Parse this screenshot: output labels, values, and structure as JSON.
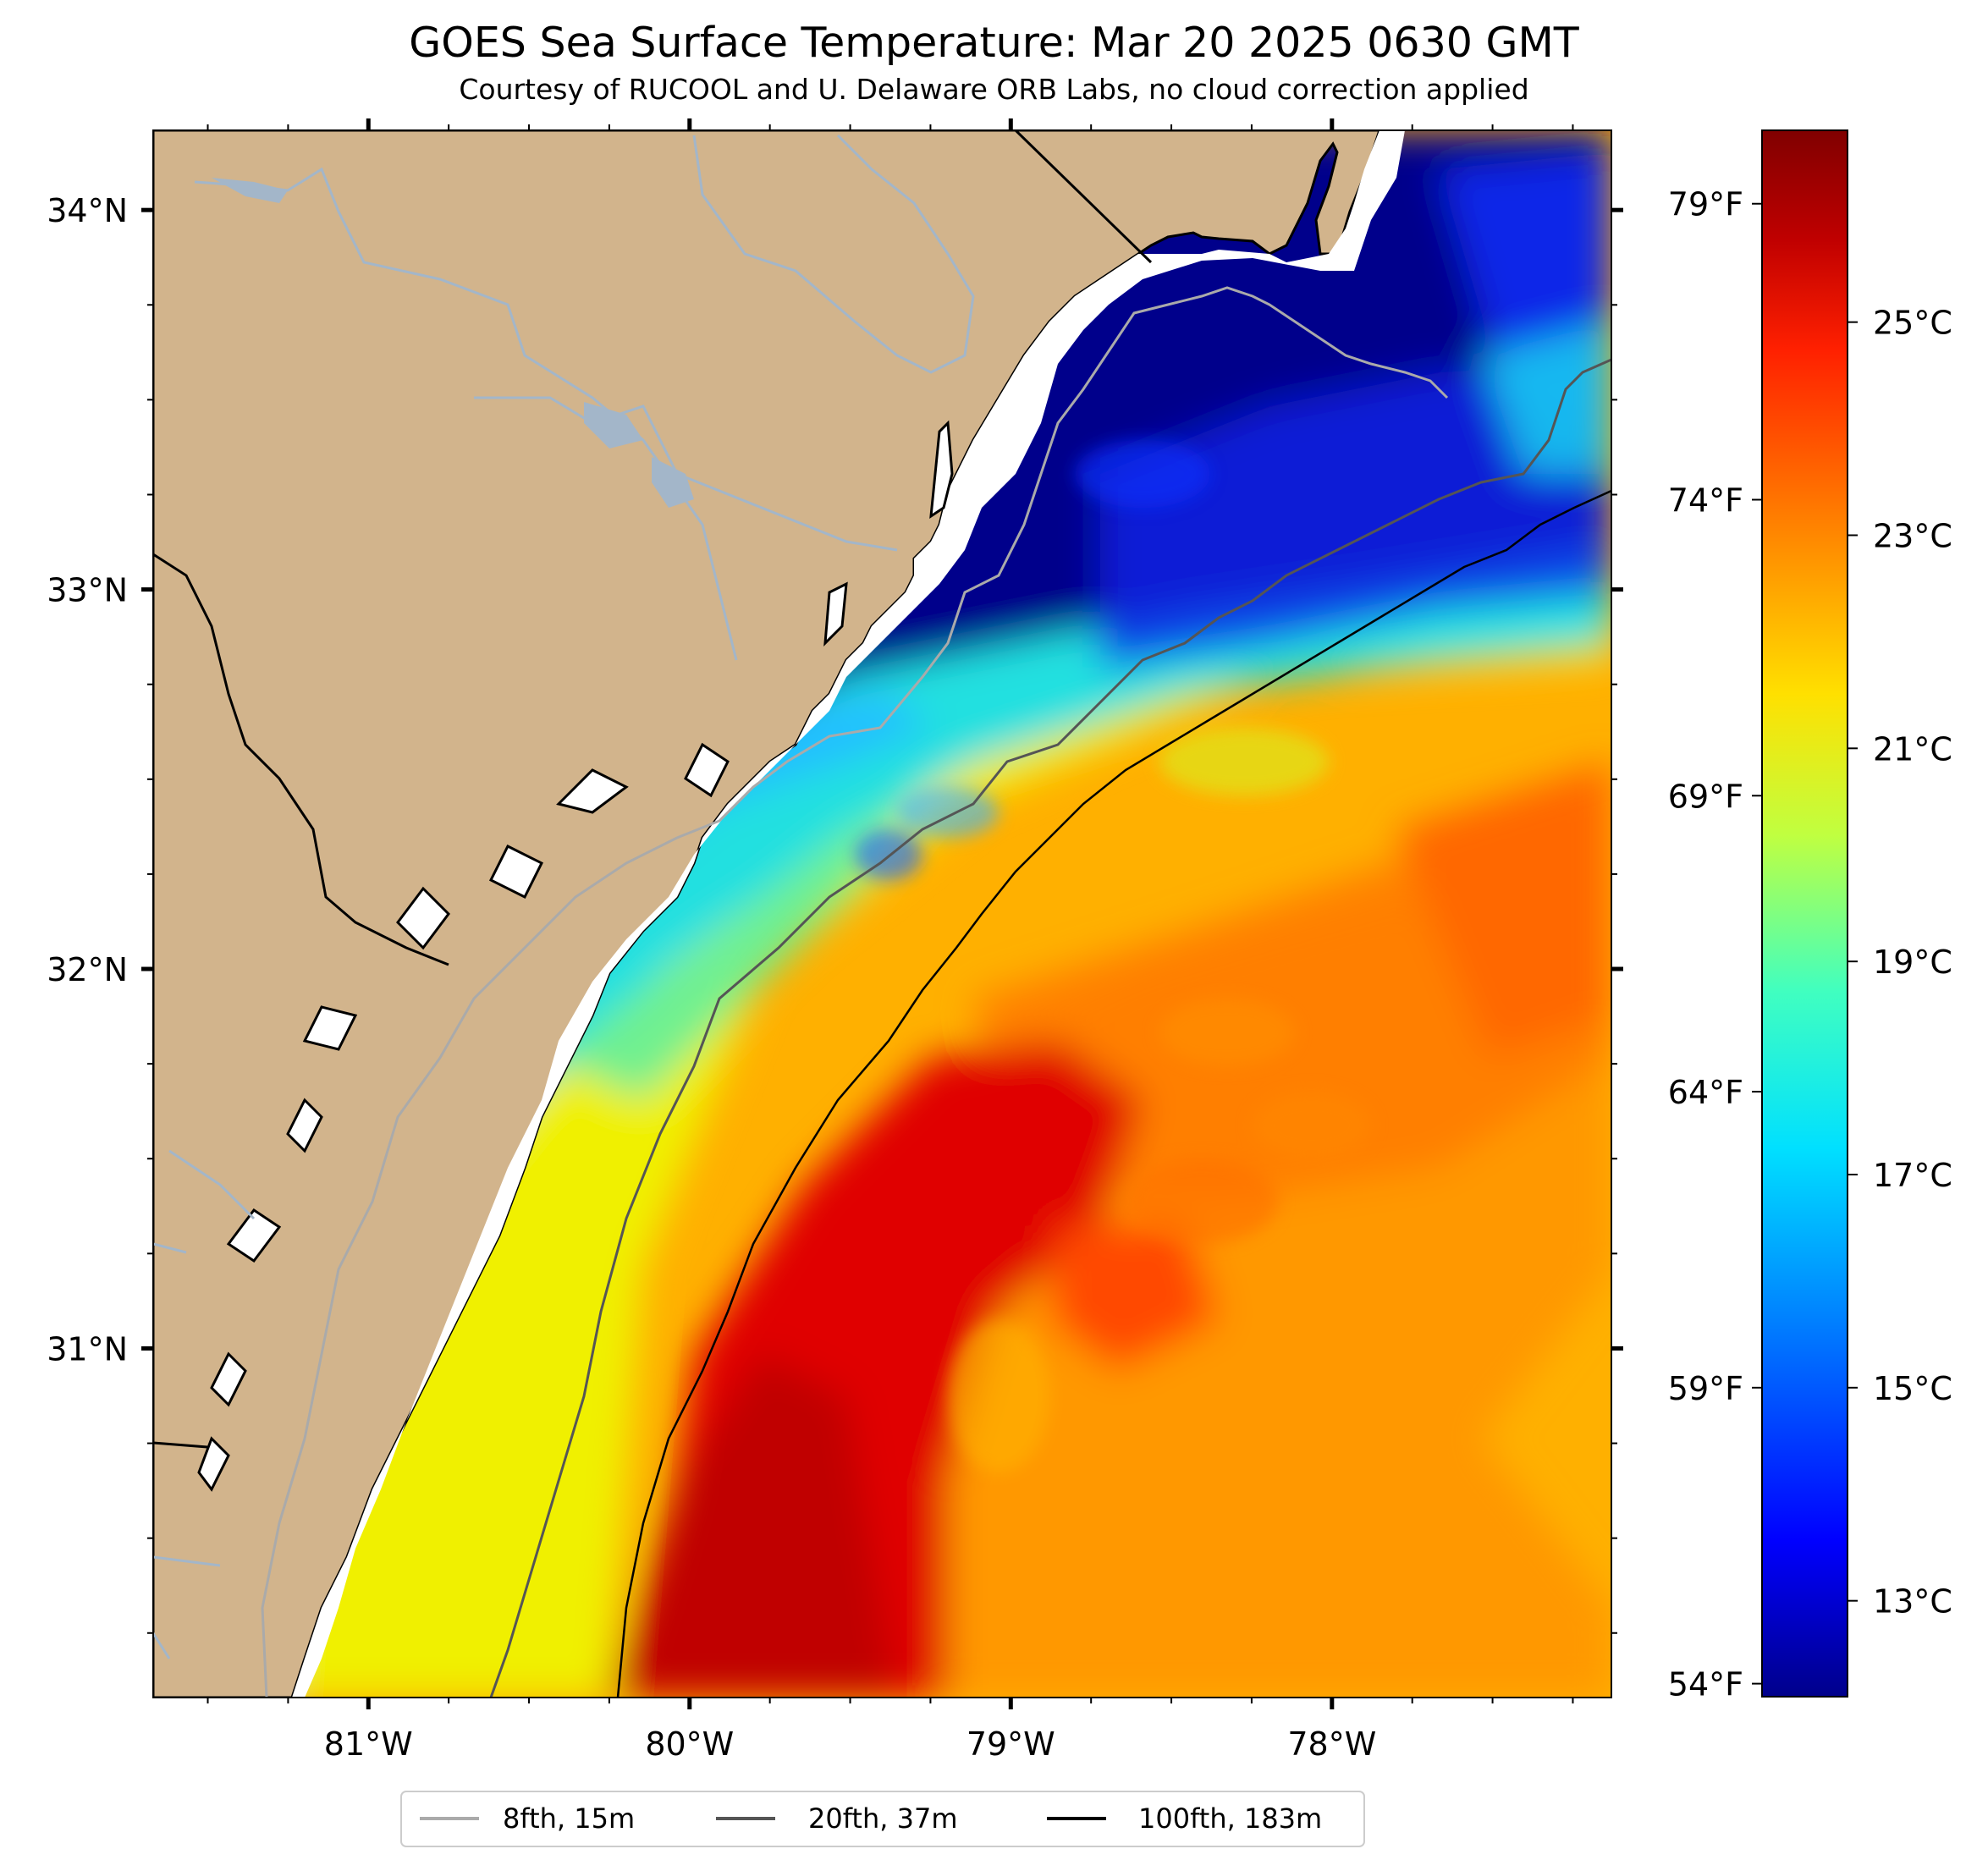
{
  "title": "GOES Sea Surface Temperature: Mar 20 2025 0630 GMT",
  "subtitle": "Courtesy of RUCOOL and U. Delaware ORB Labs, no cloud correction applied",
  "map": {
    "lon_range": [
      -81.67,
      -77.13
    ],
    "lat_range": [
      30.08,
      34.21
    ],
    "lon_ticks": [
      {
        "value": -81,
        "label": "81°W"
      },
      {
        "value": -80,
        "label": "80°W"
      },
      {
        "value": -79,
        "label": "79°W"
      },
      {
        "value": -78,
        "label": "78°W"
      }
    ],
    "lat_ticks": [
      {
        "value": 34,
        "label": "34°N"
      },
      {
        "value": 33,
        "label": "33°N"
      },
      {
        "value": 32,
        "label": "32°N"
      },
      {
        "value": 31,
        "label": "31°N"
      }
    ],
    "land_color": "#d2b48c",
    "water_colors": [
      "#00008b",
      "#1e28ff",
      "#00b4ff",
      "#28e6c8",
      "#f5f000",
      "#ffa000",
      "#ff7800",
      "#dc0000",
      "#b40000"
    ]
  },
  "colorbar": {
    "celsius": [
      {
        "value": 13,
        "label": "13°C"
      },
      {
        "value": 15,
        "label": "15°C"
      },
      {
        "value": 17,
        "label": "17°C"
      },
      {
        "value": 19,
        "label": "19°C"
      },
      {
        "value": 21,
        "label": "21°C"
      },
      {
        "value": 23,
        "label": "23°C"
      },
      {
        "value": 25,
        "label": "25°C"
      }
    ],
    "fahrenheit": [
      {
        "value": 54,
        "label": "54°F"
      },
      {
        "value": 59,
        "label": "59°F"
      },
      {
        "value": 64,
        "label": "64°F"
      },
      {
        "value": 69,
        "label": "69°F"
      },
      {
        "value": 74,
        "label": "74°F"
      },
      {
        "value": 79,
        "label": "79°F"
      }
    ],
    "range_c": [
      12.1,
      26.8
    ],
    "colors": [
      "#00008b",
      "#0000ff",
      "#0080ff",
      "#00e0ff",
      "#40ffc0",
      "#c0ff40",
      "#ffe000",
      "#ff8000",
      "#ff2000",
      "#c00000",
      "#800000"
    ]
  },
  "legend": [
    {
      "label": "8fth, 15m",
      "color": "#aaaaaa"
    },
    {
      "label": "20fth, 37m",
      "color": "#555555"
    },
    {
      "label": "100fth, 183m",
      "color": "#000000"
    }
  ]
}
